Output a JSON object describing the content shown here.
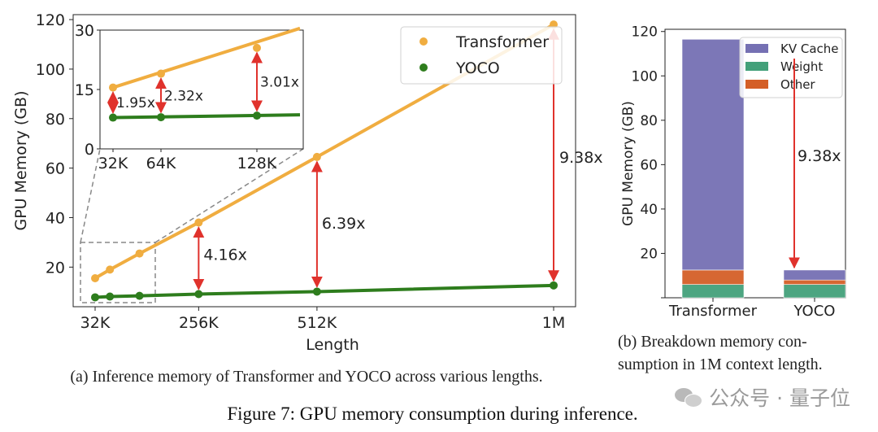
{
  "colors": {
    "transformer": "#f0ad40",
    "yoco": "#2e7d1d",
    "arrow": "#e0322c",
    "kv_cache": "#7570b3",
    "weight": "#43a07a",
    "other": "#d45f27",
    "zoom_box": "#888888"
  },
  "chart_data": [
    {
      "type": "line",
      "xlabel": "Length",
      "ylabel": "GPU Memory (GB)",
      "x_ticks": [
        "32K",
        "256K",
        "512K",
        "1M"
      ],
      "y_ticks": [
        "20",
        "40",
        "60",
        "80",
        "100",
        "120"
      ],
      "ylim": [
        4,
        122
      ],
      "legend_position": "top-right",
      "series": [
        {
          "name": "Transformer",
          "x": [
            32,
            64,
            128,
            256,
            512,
            1024
          ],
          "values": [
            15.5,
            19.0,
            25.5,
            38.0,
            64.5,
            118.0
          ]
        },
        {
          "name": "YOCO",
          "x": [
            32,
            64,
            128,
            256,
            512,
            1024
          ],
          "values": [
            7.8,
            8.1,
            8.4,
            9.1,
            10.1,
            12.6
          ]
        }
      ],
      "annotations": [
        {
          "x": 256,
          "label": "4.16x"
        },
        {
          "x": 512,
          "label": "6.39x"
        },
        {
          "x": 1024,
          "label": "9.38x"
        }
      ],
      "caption": "(a) Inference memory of Transformer and YOCO across various lengths.",
      "inset": {
        "x_ticks": [
          "32K",
          "64K",
          "128K"
        ],
        "y_ticks": [
          "0",
          "15",
          "30"
        ],
        "ylim": [
          0,
          30
        ],
        "series": [
          {
            "name": "Transformer",
            "x": [
              32,
              64,
              128
            ],
            "values": [
              15.5,
              19.0,
              25.5
            ]
          },
          {
            "name": "YOCO",
            "x": [
              32,
              64,
              128
            ],
            "values": [
              7.9,
              8.0,
              8.4
            ]
          }
        ],
        "annotations": [
          {
            "x": 32,
            "label": "1.95x"
          },
          {
            "x": 64,
            "label": "2.32x"
          },
          {
            "x": 128,
            "label": "3.01x"
          }
        ]
      }
    },
    {
      "type": "bar",
      "stacked": true,
      "categories": [
        "Transformer",
        "YOCO"
      ],
      "ylabel": "GPU Memory (GB)",
      "y_ticks": [
        "0",
        "20",
        "40",
        "60",
        "80",
        "100",
        "120"
      ],
      "ylim": [
        0,
        121
      ],
      "legend_position": "top-right",
      "series": [
        {
          "name": "Weight",
          "values": [
            6.0,
            6.0
          ]
        },
        {
          "name": "Other",
          "values": [
            6.5,
            2.0
          ]
        },
        {
          "name": "KV Cache",
          "values": [
            104.0,
            4.5
          ]
        }
      ],
      "annotations": [
        {
          "label": "9.38x"
        }
      ],
      "caption_lines": [
        "(b) Breakdown memory con-",
        "sumption in 1M context length."
      ]
    }
  ],
  "figure_caption": "Figure 7: GPU memory consumption during inference.",
  "watermark": {
    "text": "公众号 · 量子位",
    "icon": "wechat-icon"
  }
}
